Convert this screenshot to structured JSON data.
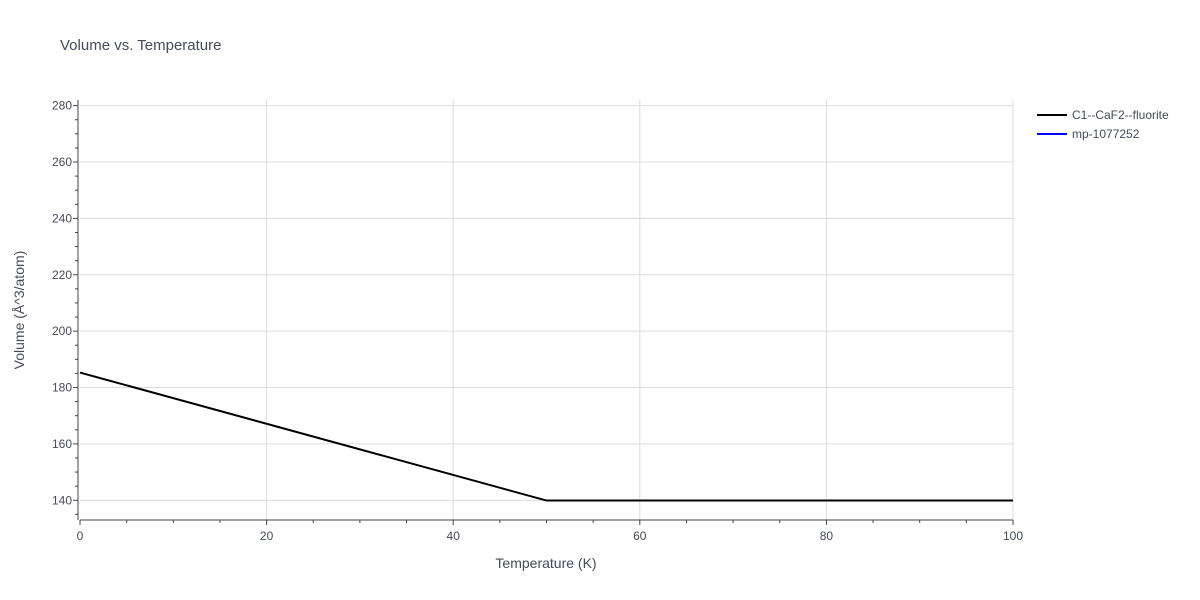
{
  "chart_data": {
    "type": "line",
    "title": "Volume vs. Temperature",
    "xlabel": "Temperature (K)",
    "ylabel": "Volume (Å^3/atom)",
    "xlim": [
      0,
      100
    ],
    "ylim": [
      133,
      282
    ],
    "x_ticks": [
      0,
      20,
      40,
      60,
      80,
      100
    ],
    "y_ticks": [
      140,
      160,
      180,
      200,
      220,
      240,
      260,
      280
    ],
    "grid": true,
    "legend_position": "top-right, outside plot",
    "series": [
      {
        "name": "C1--CaF2--fluorite",
        "color": "#000000",
        "x": [
          0,
          50,
          100
        ],
        "y": [
          185.3,
          139.9,
          139.9
        ]
      },
      {
        "name": "mp-1077252",
        "color": "#0000ff",
        "x": [],
        "y": []
      }
    ]
  }
}
